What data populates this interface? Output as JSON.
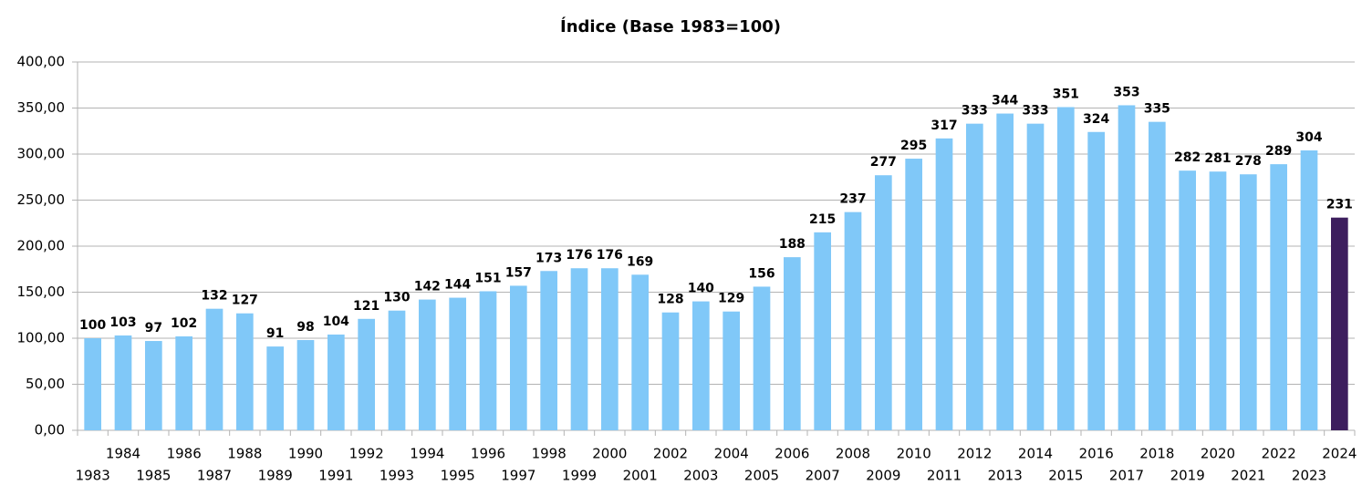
{
  "chart_data": {
    "type": "bar",
    "title": "Índice (Base 1983=100)",
    "categories": [
      "1983",
      "1984",
      "1985",
      "1986",
      "1987",
      "1988",
      "1989",
      "1990",
      "1991",
      "1992",
      "1993",
      "1994",
      "1995",
      "1996",
      "1997",
      "1998",
      "1999",
      "2000",
      "2001",
      "2002",
      "2003",
      "2004",
      "2005",
      "2006",
      "2007",
      "2008",
      "2009",
      "2010",
      "2011",
      "2012",
      "2013",
      "2014",
      "2015",
      "2016",
      "2017",
      "2018",
      "2019",
      "2020",
      "2021",
      "2022",
      "2023",
      "2024"
    ],
    "values": [
      100,
      103,
      97,
      102,
      132,
      127,
      91,
      98,
      104,
      121,
      130,
      142,
      144,
      151,
      157,
      173,
      176,
      176,
      169,
      128,
      140,
      129,
      156,
      188,
      215,
      237,
      277,
      295,
      317,
      333,
      344,
      333,
      351,
      324,
      353,
      335,
      282,
      281,
      278,
      289,
      304,
      231
    ],
    "colors": [
      "#80c8f8",
      "#80c8f8",
      "#80c8f8",
      "#80c8f8",
      "#80c8f8",
      "#80c8f8",
      "#80c8f8",
      "#80c8f8",
      "#80c8f8",
      "#80c8f8",
      "#80c8f8",
      "#80c8f8",
      "#80c8f8",
      "#80c8f8",
      "#80c8f8",
      "#80c8f8",
      "#80c8f8",
      "#80c8f8",
      "#80c8f8",
      "#80c8f8",
      "#80c8f8",
      "#80c8f8",
      "#80c8f8",
      "#80c8f8",
      "#80c8f8",
      "#80c8f8",
      "#80c8f8",
      "#80c8f8",
      "#80c8f8",
      "#80c8f8",
      "#80c8f8",
      "#80c8f8",
      "#80c8f8",
      "#80c8f8",
      "#80c8f8",
      "#80c8f8",
      "#80c8f8",
      "#80c8f8",
      "#80c8f8",
      "#80c8f8",
      "#80c8f8",
      "#3d1e5e"
    ],
    "ylim": [
      0,
      400
    ],
    "yticks": [
      {
        "value": 0,
        "label": "0,00"
      },
      {
        "value": 50,
        "label": "50,00"
      },
      {
        "value": 100,
        "label": "100,00"
      },
      {
        "value": 150,
        "label": "150,00"
      },
      {
        "value": 200,
        "label": "200,00"
      },
      {
        "value": 250,
        "label": "250,00"
      },
      {
        "value": 300,
        "label": "300,00"
      },
      {
        "value": 350,
        "label": "350,00"
      },
      {
        "value": 400,
        "label": "400,00"
      }
    ],
    "grid": true
  }
}
